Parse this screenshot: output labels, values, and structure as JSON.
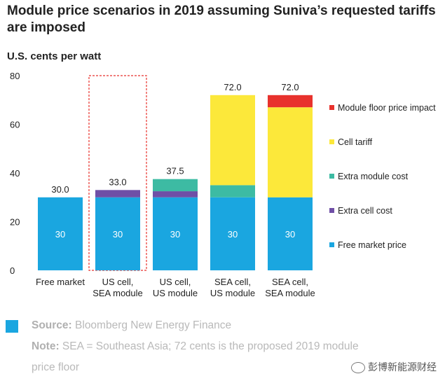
{
  "chart_data": {
    "type": "bar",
    "stacked": true,
    "title": "Module price scenarios in 2019 assuming Suniva’s requested tariffs are imposed",
    "ylabel": "U.S. cents per watt",
    "ylim": [
      0,
      80
    ],
    "yticks": [
      0,
      20,
      40,
      60,
      80
    ],
    "grid": false,
    "legend_position": "right",
    "categories": [
      [
        "Free market"
      ],
      [
        "US cell,",
        "SEA module"
      ],
      [
        "US cell,",
        "US module"
      ],
      [
        "SEA cell,",
        "US module"
      ],
      [
        "SEA cell,",
        "SEA module"
      ]
    ],
    "totals": [
      "30.0",
      "33.0",
      "37.5",
      "72.0",
      "72.0"
    ],
    "series": [
      {
        "name": "Free market price",
        "color": "#1aa6e0",
        "values": [
          30,
          30,
          30,
          30,
          30
        ],
        "labels": [
          "30",
          "30",
          "30",
          "30",
          "30"
        ]
      },
      {
        "name": "Extra cell cost",
        "color": "#6f4fa6",
        "values": [
          0,
          3,
          2.5,
          0,
          0
        ]
      },
      {
        "name": "Extra module cost",
        "color": "#3dbba3",
        "values": [
          0,
          0,
          5,
          5,
          0
        ]
      },
      {
        "name": "Cell tariff",
        "color": "#fce83a",
        "values": [
          0,
          0,
          0,
          37,
          37
        ]
      },
      {
        "name": "Module floor price impact",
        "color": "#e8322d",
        "values": [
          0,
          0,
          0,
          0,
          5
        ]
      }
    ],
    "legend_order": [
      "Module floor price impact",
      "Cell tariff",
      "Extra module cost",
      "Extra cell cost",
      "Free market price"
    ],
    "highlighted_category_index": 1,
    "highlight_color": "#e8322d"
  },
  "footer": {
    "source_label": "Source:",
    "source_text": "Bloomberg New Energy Finance",
    "note_label": "Note:",
    "note_text_1": "SEA = Southeast Asia; 72 cents is the proposed 2019 module",
    "note_text_2": "price floor",
    "source_color": "#1aa6e0"
  },
  "watermark": {
    "text": "彭博新能源财经",
    "icon": "wechat-icon"
  }
}
